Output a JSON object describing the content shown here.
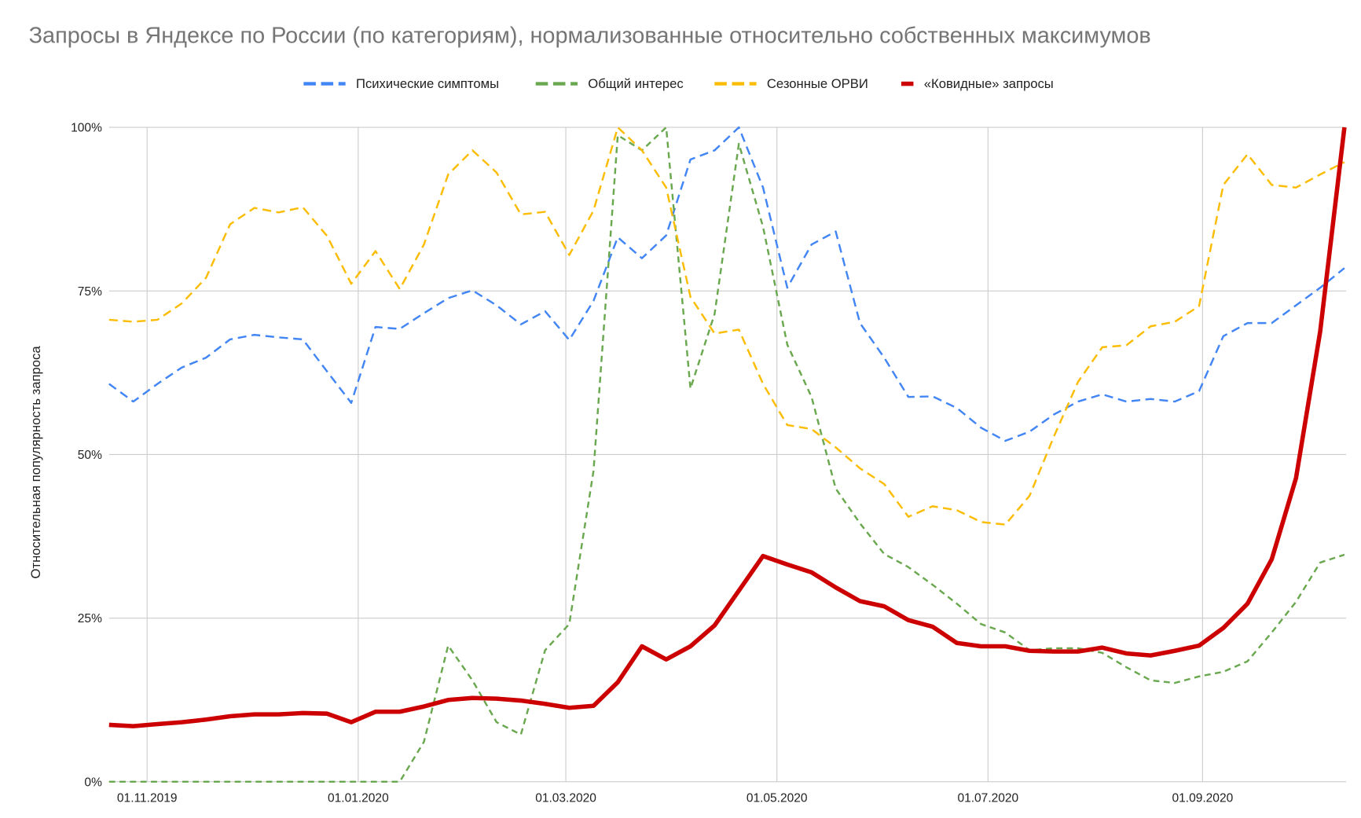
{
  "chart_data": {
    "type": "line",
    "title": "Запросы в Яндексе по России (по категориям), нормализованные относительно собственных максимумов",
    "xlabel": "",
    "ylabel": "Относительная популярность запроса",
    "ylim": [
      0,
      100
    ],
    "y_unit": "%",
    "yticks": [
      "0%",
      "25%",
      "50%",
      "75%",
      "100%"
    ],
    "ytick_values": [
      0,
      25,
      50,
      75,
      100
    ],
    "xticks": [
      "01.11.2019",
      "01.01.2020",
      "01.03.2020",
      "01.05.2020",
      "01.07.2020",
      "01.09.2020"
    ],
    "xlim": [
      "21.10.2019",
      "12.10.2020"
    ],
    "grid": true,
    "legend_position": "top",
    "x": [
      "21.10.2019",
      "28.10.2019",
      "04.11.2019",
      "11.11.2019",
      "18.11.2019",
      "25.11.2019",
      "02.12.2019",
      "09.12.2019",
      "16.12.2019",
      "23.12.2019",
      "30.12.2019",
      "06.01.2020",
      "13.01.2020",
      "20.01.2020",
      "27.01.2020",
      "03.02.2020",
      "10.02.2020",
      "17.02.2020",
      "24.02.2020",
      "02.03.2020",
      "09.03.2020",
      "16.03.2020",
      "23.03.2020",
      "30.03.2020",
      "06.04.2020",
      "13.04.2020",
      "20.04.2020",
      "27.04.2020",
      "04.05.2020",
      "11.05.2020",
      "18.05.2020",
      "25.05.2020",
      "01.06.2020",
      "08.06.2020",
      "15.06.2020",
      "22.06.2020",
      "29.06.2020",
      "06.07.2020",
      "13.07.2020",
      "20.07.2020",
      "27.07.2020",
      "03.08.2020",
      "10.08.2020",
      "17.08.2020",
      "24.08.2020",
      "31.08.2020",
      "07.09.2020",
      "14.09.2020",
      "21.09.2020",
      "28.09.2020",
      "05.10.2020",
      "12.10.2020"
    ],
    "series": [
      {
        "name": "Психические симптомы",
        "color": "#4285F4",
        "style": "dashed",
        "values": [
          60.8,
          58.1,
          60.8,
          63.3,
          64.8,
          67.6,
          68.3,
          67.9,
          67.6,
          62.7,
          57.9,
          69.5,
          69.2,
          71.6,
          73.9,
          75.1,
          72.8,
          69.9,
          71.9,
          67.5,
          73.5,
          83.2,
          80.0,
          83.5,
          95.1,
          96.5,
          100,
          90.8,
          75.5,
          82.1,
          84.1,
          70.1,
          64.8,
          58.8,
          58.9,
          57.1,
          54.1,
          52.1,
          53.5,
          56.1,
          58.1,
          59.2,
          58.1,
          58.5,
          58.1,
          59.7,
          68.1,
          70.1,
          70.1,
          72.8,
          75.5,
          78.5
        ]
      },
      {
        "name": "Общий интерес",
        "color": "#6AA84F",
        "style": "dashed",
        "values": [
          0,
          0,
          0,
          0,
          0,
          0,
          0,
          0,
          0,
          0,
          0,
          0,
          0,
          6.1,
          20.8,
          15.5,
          9.1,
          7.2,
          20.1,
          24.1,
          47.5,
          98.8,
          96.5,
          100,
          60.1,
          71.5,
          97.5,
          84.8,
          66.8,
          58.8,
          44.8,
          39.5,
          34.8,
          32.8,
          30.1,
          27.2,
          24.1,
          22.8,
          20.1,
          20.4,
          20.4,
          19.7,
          17.5,
          15.5,
          15.1,
          16.1,
          16.8,
          18.4,
          22.8,
          27.5,
          33.5,
          34.7
        ]
      },
      {
        "name": "Сезонные ОРВИ",
        "color": "#FBBC04",
        "style": "dashed",
        "values": [
          70.6,
          70.3,
          70.6,
          73.1,
          77.0,
          85.2,
          87.7,
          87.0,
          87.8,
          83.4,
          76.1,
          81.1,
          75.3,
          82.1,
          92.8,
          96.5,
          93.1,
          86.7,
          87.1,
          80.5,
          87.3,
          100,
          96.5,
          90.8,
          74.1,
          68.5,
          69.1,
          60.8,
          54.5,
          53.9,
          51.1,
          47.9,
          45.5,
          40.5,
          42.1,
          41.5,
          39.7,
          39.3,
          43.7,
          52.7,
          61.1,
          66.4,
          66.7,
          69.6,
          70.3,
          72.7,
          91.2,
          95.9,
          91.2,
          90.8,
          92.8,
          94.7
        ]
      },
      {
        "name": "«Ковидные» запросы",
        "color": "#CC0000",
        "style": "solid",
        "values": [
          8.7,
          8.5,
          8.8,
          9.1,
          9.5,
          10.0,
          10.3,
          10.3,
          10.5,
          10.4,
          9.1,
          10.7,
          10.7,
          11.5,
          12.5,
          12.8,
          12.7,
          12.4,
          11.9,
          11.3,
          11.6,
          15.2,
          20.7,
          18.7,
          20.7,
          23.9,
          29.2,
          34.5,
          33.2,
          32.0,
          29.7,
          27.6,
          26.8,
          24.7,
          23.7,
          21.2,
          20.7,
          20.7,
          20.0,
          19.9,
          19.9,
          20.5,
          19.6,
          19.3,
          20.0,
          20.8,
          23.5,
          27.2,
          34.0,
          46.4,
          68.8,
          100
        ]
      }
    ]
  }
}
